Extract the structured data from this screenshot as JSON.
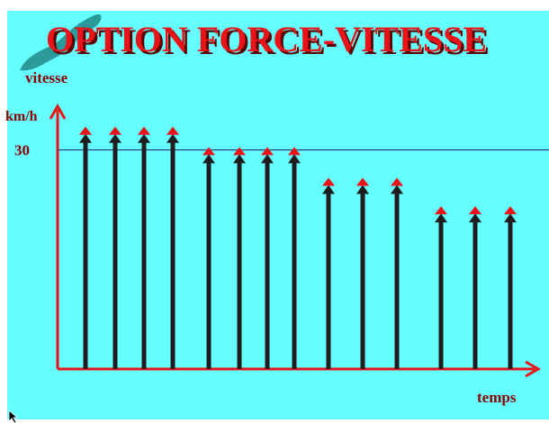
{
  "chart_data": {
    "type": "bar",
    "title": "OPTION FORCE-VITESSE",
    "y_axis_label": "vitesse",
    "y_unit": "km/h",
    "x_axis_label": "temps",
    "categories": [
      null,
      null,
      null,
      null,
      null,
      null,
      null,
      null,
      null,
      null,
      null,
      null,
      null,
      null
    ],
    "values": [
      33.2,
      33.2,
      33.2,
      33.2,
      30.4,
      30.4,
      30.4,
      30.4,
      26.2,
      26.2,
      26.2,
      22.3,
      22.3,
      22.3
    ],
    "color": "#e8141a",
    "ylim": [
      0,
      36
    ],
    "yticks": [
      30
    ],
    "grid": true
  }
}
